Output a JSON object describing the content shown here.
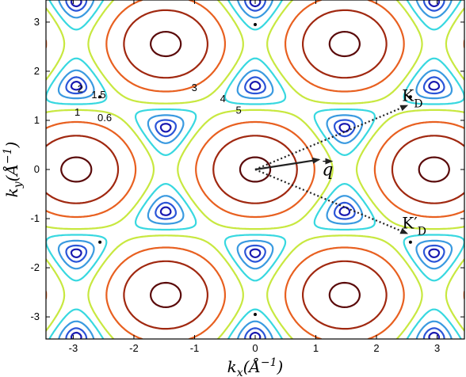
{
  "chart_data": {
    "type": "contour",
    "title": "",
    "xlabel_main": "k",
    "xlabel_sub": "x",
    "xlabel_unit": "(Å",
    "xlabel_exp": "−1",
    "xlabel_close": ")",
    "ylabel_main": "k",
    "ylabel_sub": "y",
    "ylabel_unit": "(Å",
    "ylabel_exp": "−1",
    "ylabel_close": ")",
    "xlim": [
      -3.45,
      3.45
    ],
    "ylim": [
      -3.45,
      3.45
    ],
    "xticks": [
      -3,
      -2,
      -1,
      0,
      1,
      2,
      3
    ],
    "yticks": [
      3,
      2,
      1,
      0,
      -1,
      -2,
      -3
    ],
    "xtick_labels": [
      "-3",
      "-2",
      "-1",
      "0",
      "1",
      "2",
      "3"
    ],
    "ytick_labels": [
      "3",
      "2",
      "1",
      "0",
      "-1",
      "-2",
      "-3"
    ],
    "grid": false,
    "legend": "none",
    "contour_levels": [
      {
        "level": 0.3,
        "color": "#1a1ab0"
      },
      {
        "level": 0.6,
        "color": "#2b55d8"
      },
      {
        "level": 1,
        "color": "#3a9ae0"
      },
      {
        "level": 1.5,
        "color": "#38d8e0"
      },
      {
        "level": 2,
        "color": "#c8e840"
      },
      {
        "level": 3,
        "color": "#e86020"
      },
      {
        "level": 4,
        "color": "#a02810"
      },
      {
        "level": 5,
        "color": "#5a0a0a"
      }
    ],
    "contour_annotations": [
      {
        "text": "2",
        "x": -2.93,
        "y": 1.57
      },
      {
        "text": "1.5",
        "x": -2.7,
        "y": 1.45
      },
      {
        "text": "1",
        "x": -2.98,
        "y": 1.1
      },
      {
        "text": "0.6",
        "x": -2.6,
        "y": 0.98
      },
      {
        "text": "3",
        "x": -1.05,
        "y": 1.6
      },
      {
        "text": "4",
        "x": -0.58,
        "y": 1.37
      },
      {
        "text": "5",
        "x": -0.32,
        "y": 1.14
      }
    ],
    "dirac_points": [
      {
        "x": 2.56,
        "y": 1.48
      },
      {
        "x": 2.56,
        "y": -1.48
      },
      {
        "x": -2.56,
        "y": 1.48
      },
      {
        "x": -2.56,
        "y": -1.48
      },
      {
        "x": 0,
        "y": 2.95
      },
      {
        "x": 0,
        "y": -2.95
      }
    ],
    "vectors": {
      "q": {
        "label": "q",
        "from": [
          0,
          0
        ],
        "to": [
          1.05,
          0.2
        ]
      },
      "arrows_to_K": [
        {
          "from": [
            0,
            0
          ],
          "to": [
            2.5,
            1.3
          ],
          "label": "K",
          "sub": "D"
        },
        {
          "from": [
            0,
            0
          ],
          "to": [
            2.5,
            -1.3
          ],
          "label": "K′",
          "sub": "D"
        }
      ]
    }
  }
}
